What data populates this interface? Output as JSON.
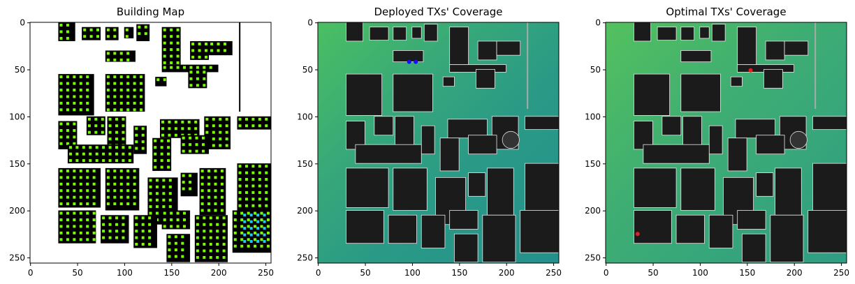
{
  "panels": [
    {
      "title": "Building Map",
      "x_ticks": [
        "0",
        "50",
        "100",
        "150",
        "200",
        "250"
      ],
      "y_ticks": [
        "0",
        "50",
        "100",
        "150",
        "200",
        "250"
      ]
    },
    {
      "title": "Deployed TXs' Coverage",
      "x_ticks": [
        "0",
        "50",
        "100",
        "150",
        "200",
        "250"
      ],
      "y_ticks": [
        "0",
        "50",
        "100",
        "150",
        "200",
        "250"
      ]
    },
    {
      "title": "Optimal TXs' Coverage",
      "x_ticks": [
        "0",
        "50",
        "100",
        "150",
        "200",
        "250"
      ],
      "y_ticks": [
        "0",
        "50",
        "100",
        "150",
        "200",
        "250"
      ]
    }
  ],
  "chart_data": {
    "type": "heatmap",
    "x_range": [
      0,
      256
    ],
    "y_range": [
      256,
      0
    ],
    "colors": {
      "background_map": "#ffffff",
      "building": "#000000",
      "grid_points": "#7cfc00",
      "highlight_points": "#1ec8ff",
      "coverage_high": "#4bbf62",
      "coverage_low": "#1f8f8f",
      "building_coverage": "#1b1b1b",
      "deployed_tx": "#1010ff",
      "optimal_tx": "#e02020"
    },
    "deployed_tx": [
      [
        97,
        42
      ],
      [
        104,
        42
      ]
    ],
    "optimal_tx": [
      [
        154,
        51
      ],
      [
        34,
        225
      ]
    ],
    "buildings": [
      [
        30,
        0,
        18,
        20
      ],
      [
        55,
        5,
        20,
        14
      ],
      [
        80,
        5,
        14,
        14
      ],
      [
        100,
        5,
        10,
        12
      ],
      [
        113,
        2,
        14,
        18
      ],
      [
        140,
        5,
        20,
        40
      ],
      [
        170,
        20,
        20,
        20
      ],
      [
        190,
        20,
        25,
        15
      ],
      [
        80,
        30,
        32,
        12
      ],
      [
        140,
        45,
        60,
        8
      ],
      [
        168,
        50,
        20,
        20
      ],
      [
        30,
        55,
        38,
        44
      ],
      [
        80,
        55,
        42,
        40
      ],
      [
        133,
        58,
        12,
        10
      ],
      [
        30,
        105,
        20,
        30
      ],
      [
        60,
        100,
        20,
        20
      ],
      [
        82,
        100,
        20,
        40
      ],
      [
        110,
        110,
        14,
        30
      ],
      [
        138,
        103,
        42,
        20
      ],
      [
        185,
        100,
        28,
        35
      ],
      [
        220,
        100,
        36,
        14
      ],
      [
        40,
        130,
        70,
        20
      ],
      [
        130,
        123,
        20,
        35
      ],
      [
        160,
        120,
        30,
        20
      ],
      [
        30,
        155,
        45,
        42
      ],
      [
        80,
        155,
        36,
        45
      ],
      [
        125,
        165,
        32,
        50
      ],
      [
        160,
        160,
        18,
        25
      ],
      [
        180,
        155,
        28,
        50
      ],
      [
        220,
        150,
        36,
        55
      ],
      [
        30,
        200,
        40,
        35
      ],
      [
        75,
        205,
        30,
        30
      ],
      [
        110,
        205,
        25,
        35
      ],
      [
        140,
        200,
        30,
        20
      ],
      [
        145,
        225,
        25,
        30
      ],
      [
        175,
        205,
        35,
        50
      ],
      [
        215,
        200,
        41,
        45
      ]
    ]
  }
}
